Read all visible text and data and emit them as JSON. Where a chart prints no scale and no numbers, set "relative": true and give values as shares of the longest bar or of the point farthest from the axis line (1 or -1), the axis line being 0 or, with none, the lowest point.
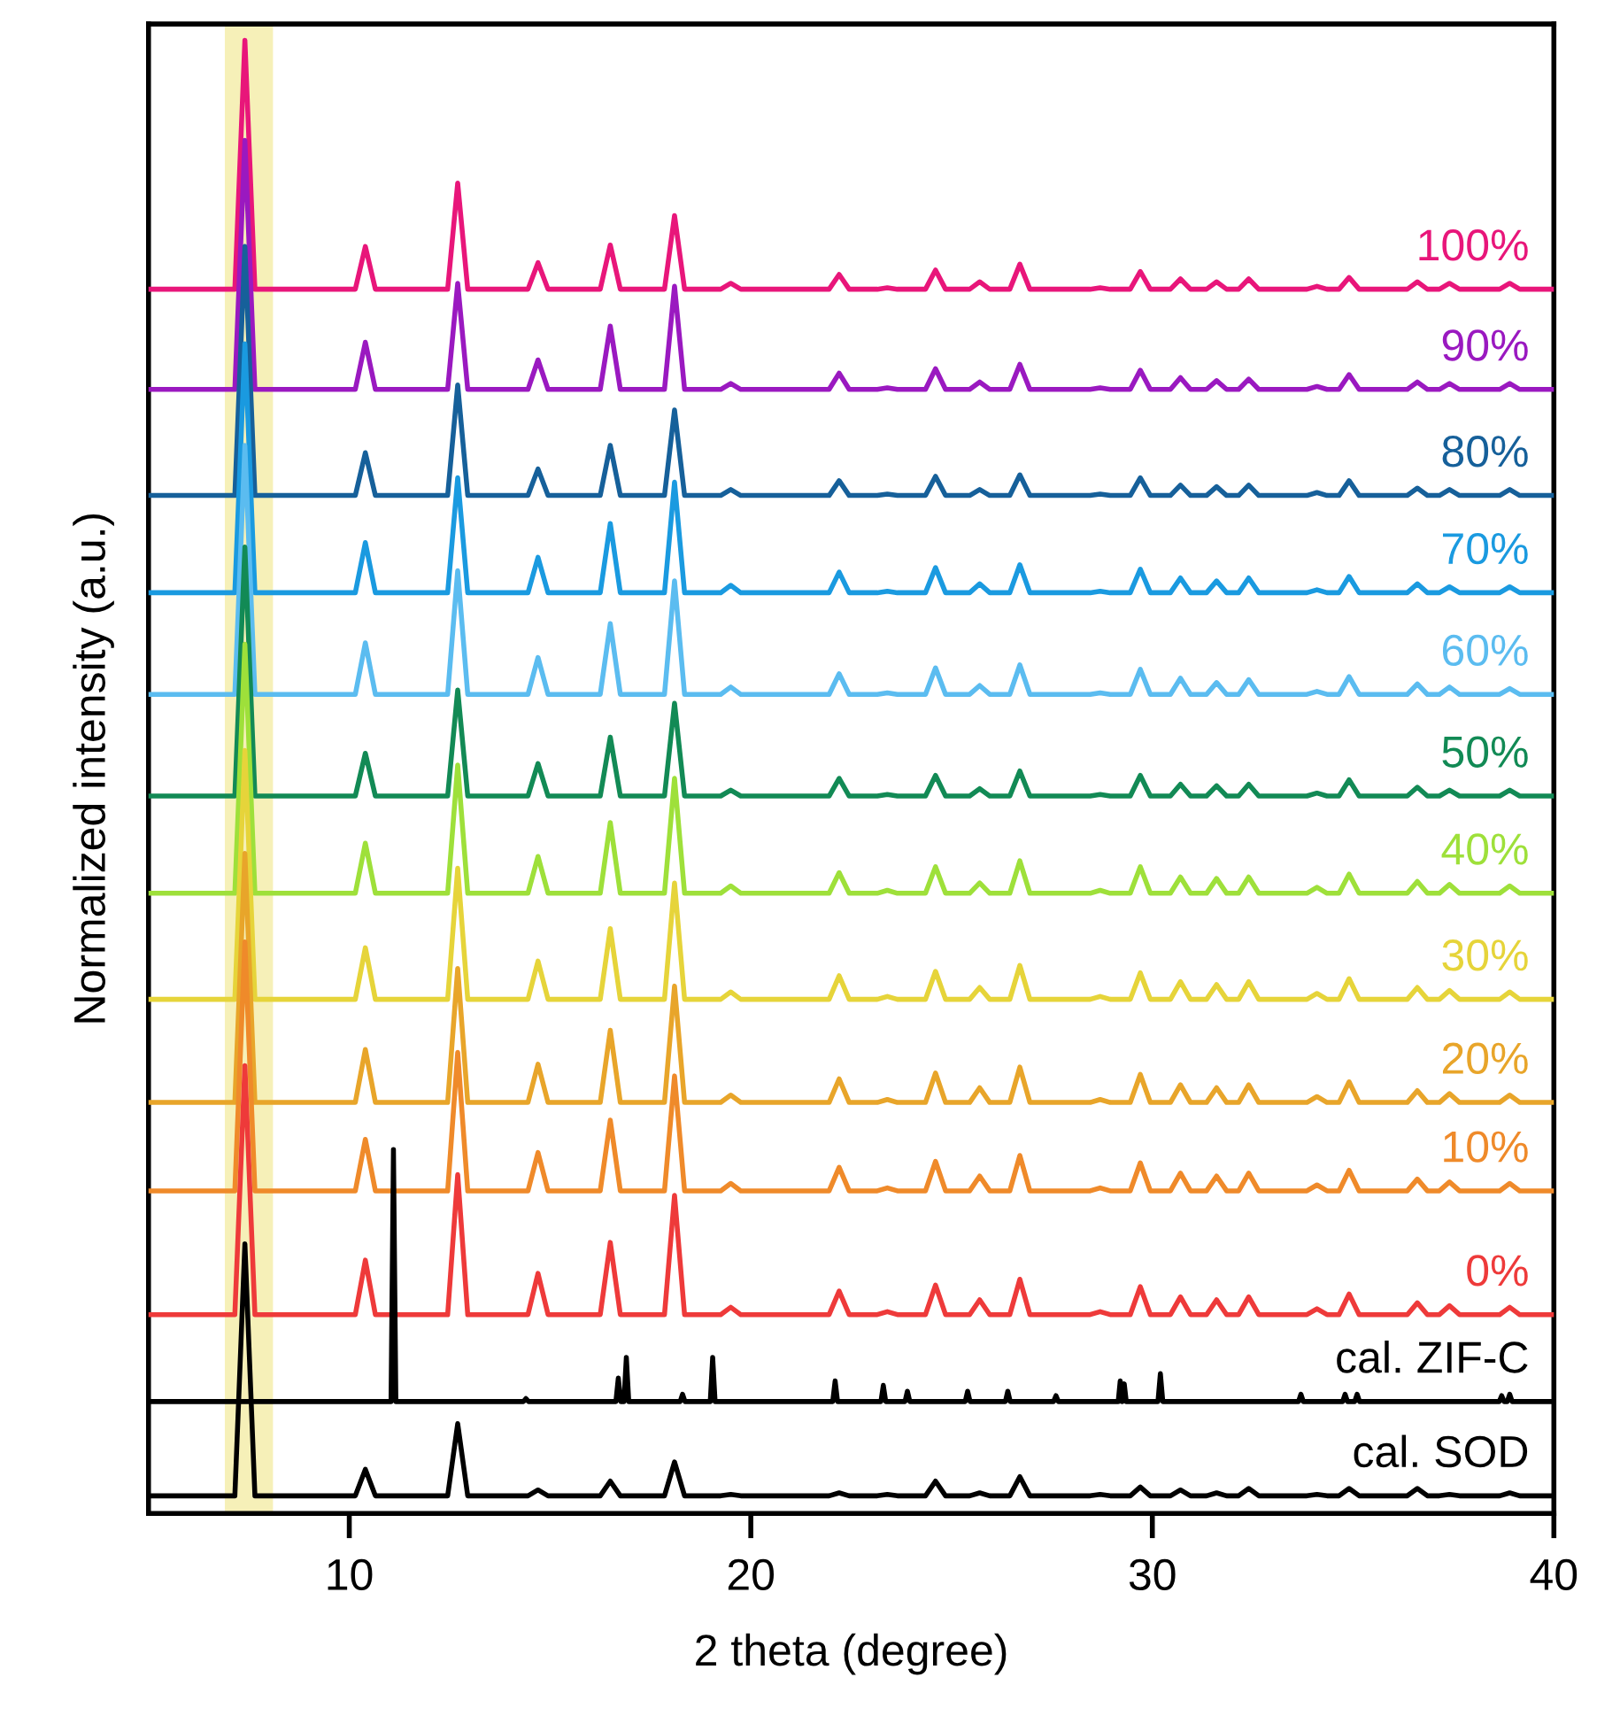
{
  "chart_data": {
    "type": "line",
    "relative": true,
    "xlabel": "2 theta (degree)",
    "ylabel": "Normalized intensity (a.u.)",
    "xlim": [
      5,
      40
    ],
    "xticks": [
      10,
      20,
      30,
      40
    ],
    "tick_labels": "x",
    "bands": [
      {
        "axis": "x",
        "from": 6.9,
        "to": 8.1,
        "color": "#f6f0b8"
      }
    ],
    "x": [
      5,
      7.15,
      7.4,
      7.65,
      10.15,
      10.4,
      10.65,
      12.45,
      12.7,
      12.95,
      14.45,
      14.7,
      14.95,
      16.25,
      16.5,
      16.75,
      17.85,
      18.1,
      18.35,
      19.25,
      19.5,
      19.75,
      21.95,
      22.2,
      22.45,
      23.15,
      23.4,
      23.65,
      24.35,
      24.6,
      24.85,
      25.45,
      25.7,
      25.95,
      26.45,
      26.7,
      26.95,
      28.45,
      28.7,
      28.95,
      29.45,
      29.7,
      29.95,
      30.45,
      30.7,
      30.95,
      31.35,
      31.6,
      31.85,
      32.15,
      32.4,
      32.65,
      33.85,
      34.1,
      34.35,
      34.65,
      34.9,
      35.15,
      36.35,
      36.6,
      36.85,
      37.15,
      37.4,
      37.65,
      38.65,
      38.9,
      39.15,
      40
    ],
    "series": [
      {
        "name": "100%",
        "color": "#e8167a",
        "values": [
          0.831,
          0.831,
          1.0,
          0.831,
          0.831,
          0.86,
          0.831,
          0.831,
          0.903,
          0.831,
          0.831,
          0.849,
          0.831,
          0.831,
          0.861,
          0.831,
          0.831,
          0.881,
          0.831,
          0.831,
          0.835,
          0.831,
          0.831,
          0.841,
          0.831,
          0.831,
          0.832,
          0.831,
          0.831,
          0.844,
          0.831,
          0.831,
          0.836,
          0.831,
          0.831,
          0.848,
          0.831,
          0.831,
          0.832,
          0.831,
          0.831,
          0.843,
          0.831,
          0.831,
          0.838,
          0.831,
          0.831,
          0.836,
          0.831,
          0.831,
          0.838,
          0.831,
          0.831,
          0.833,
          0.831,
          0.831,
          0.839,
          0.831,
          0.831,
          0.836,
          0.831,
          0.831,
          0.835,
          0.831,
          0.831,
          0.835,
          0.831,
          0.831
        ]
      },
      {
        "name": "90%",
        "color": "#9a19c0",
        "values": [
          0.763,
          0.763,
          0.932,
          0.763,
          0.763,
          0.795,
          0.763,
          0.763,
          0.835,
          0.763,
          0.763,
          0.783,
          0.763,
          0.763,
          0.806,
          0.763,
          0.763,
          0.833,
          0.763,
          0.763,
          0.767,
          0.763,
          0.763,
          0.774,
          0.763,
          0.763,
          0.764,
          0.763,
          0.763,
          0.777,
          0.763,
          0.763,
          0.768,
          0.763,
          0.763,
          0.78,
          0.763,
          0.763,
          0.764,
          0.763,
          0.763,
          0.776,
          0.763,
          0.763,
          0.771,
          0.763,
          0.763,
          0.769,
          0.763,
          0.763,
          0.77,
          0.763,
          0.763,
          0.765,
          0.763,
          0.763,
          0.773,
          0.763,
          0.763,
          0.768,
          0.763,
          0.763,
          0.767,
          0.763,
          0.763,
          0.767,
          0.763,
          0.763
        ]
      },
      {
        "name": "80%",
        "color": "#16609a",
        "values": [
          0.691,
          0.691,
          0.86,
          0.691,
          0.691,
          0.72,
          0.691,
          0.691,
          0.766,
          0.691,
          0.691,
          0.709,
          0.691,
          0.691,
          0.725,
          0.691,
          0.691,
          0.749,
          0.691,
          0.691,
          0.695,
          0.691,
          0.691,
          0.701,
          0.691,
          0.691,
          0.692,
          0.691,
          0.691,
          0.704,
          0.691,
          0.691,
          0.695,
          0.691,
          0.691,
          0.705,
          0.691,
          0.691,
          0.692,
          0.691,
          0.691,
          0.703,
          0.691,
          0.691,
          0.698,
          0.691,
          0.691,
          0.697,
          0.691,
          0.691,
          0.698,
          0.691,
          0.691,
          0.693,
          0.691,
          0.691,
          0.701,
          0.691,
          0.691,
          0.696,
          0.691,
          0.691,
          0.695,
          0.691,
          0.691,
          0.695,
          0.691,
          0.691
        ]
      },
      {
        "name": "70%",
        "color": "#1a9ae0",
        "values": [
          0.625,
          0.625,
          0.794,
          0.625,
          0.625,
          0.659,
          0.625,
          0.625,
          0.703,
          0.625,
          0.625,
          0.649,
          0.625,
          0.625,
          0.672,
          0.625,
          0.625,
          0.7,
          0.625,
          0.625,
          0.63,
          0.625,
          0.625,
          0.639,
          0.625,
          0.625,
          0.626,
          0.625,
          0.625,
          0.642,
          0.625,
          0.625,
          0.631,
          0.625,
          0.625,
          0.644,
          0.625,
          0.625,
          0.626,
          0.625,
          0.625,
          0.641,
          0.625,
          0.625,
          0.635,
          0.625,
          0.625,
          0.633,
          0.625,
          0.625,
          0.635,
          0.625,
          0.625,
          0.627,
          0.625,
          0.625,
          0.636,
          0.625,
          0.625,
          0.631,
          0.625,
          0.625,
          0.629,
          0.625,
          0.625,
          0.629,
          0.625,
          0.625
        ]
      },
      {
        "name": "60%",
        "color": "#5bbcf0",
        "values": [
          0.556,
          0.556,
          0.725,
          0.556,
          0.556,
          0.591,
          0.556,
          0.556,
          0.64,
          0.556,
          0.556,
          0.581,
          0.556,
          0.556,
          0.604,
          0.556,
          0.556,
          0.633,
          0.556,
          0.556,
          0.561,
          0.556,
          0.556,
          0.57,
          0.556,
          0.556,
          0.557,
          0.556,
          0.556,
          0.574,
          0.556,
          0.556,
          0.562,
          0.556,
          0.556,
          0.576,
          0.556,
          0.556,
          0.557,
          0.556,
          0.556,
          0.573,
          0.556,
          0.556,
          0.567,
          0.556,
          0.556,
          0.564,
          0.556,
          0.556,
          0.566,
          0.556,
          0.556,
          0.558,
          0.556,
          0.556,
          0.568,
          0.556,
          0.556,
          0.563,
          0.556,
          0.556,
          0.561,
          0.556,
          0.556,
          0.56,
          0.556,
          0.556
        ]
      },
      {
        "name": "50%",
        "color": "#128a55",
        "values": [
          0.487,
          0.487,
          0.656,
          0.487,
          0.487,
          0.516,
          0.487,
          0.487,
          0.559,
          0.487,
          0.487,
          0.509,
          0.487,
          0.487,
          0.527,
          0.487,
          0.487,
          0.55,
          0.487,
          0.487,
          0.491,
          0.487,
          0.487,
          0.499,
          0.487,
          0.487,
          0.488,
          0.487,
          0.487,
          0.501,
          0.487,
          0.487,
          0.492,
          0.487,
          0.487,
          0.504,
          0.487,
          0.487,
          0.488,
          0.487,
          0.487,
          0.501,
          0.487,
          0.487,
          0.495,
          0.487,
          0.487,
          0.494,
          0.487,
          0.487,
          0.495,
          0.487,
          0.487,
          0.489,
          0.487,
          0.487,
          0.498,
          0.487,
          0.487,
          0.493,
          0.487,
          0.487,
          0.491,
          0.487,
          0.487,
          0.491,
          0.487,
          0.487
        ]
      },
      {
        "name": "40%",
        "color": "#9ee03a",
        "values": [
          0.421,
          0.421,
          0.59,
          0.421,
          0.421,
          0.455,
          0.421,
          0.421,
          0.508,
          0.421,
          0.421,
          0.446,
          0.421,
          0.421,
          0.469,
          0.421,
          0.421,
          0.499,
          0.421,
          0.421,
          0.426,
          0.421,
          0.421,
          0.435,
          0.421,
          0.421,
          0.423,
          0.421,
          0.421,
          0.439,
          0.421,
          0.421,
          0.428,
          0.421,
          0.421,
          0.443,
          0.421,
          0.421,
          0.423,
          0.421,
          0.421,
          0.439,
          0.421,
          0.421,
          0.432,
          0.421,
          0.421,
          0.431,
          0.421,
          0.421,
          0.432,
          0.421,
          0.421,
          0.425,
          0.421,
          0.421,
          0.434,
          0.421,
          0.421,
          0.429,
          0.421,
          0.421,
          0.427,
          0.421,
          0.421,
          0.426,
          0.421,
          0.421
        ]
      },
      {
        "name": "30%",
        "color": "#e6d43a",
        "values": [
          0.349,
          0.349,
          0.518,
          0.349,
          0.349,
          0.384,
          0.349,
          0.349,
          0.438,
          0.349,
          0.349,
          0.375,
          0.349,
          0.349,
          0.397,
          0.349,
          0.349,
          0.428,
          0.349,
          0.349,
          0.354,
          0.349,
          0.349,
          0.365,
          0.349,
          0.349,
          0.351,
          0.349,
          0.349,
          0.368,
          0.349,
          0.349,
          0.357,
          0.349,
          0.349,
          0.372,
          0.349,
          0.349,
          0.351,
          0.349,
          0.349,
          0.367,
          0.349,
          0.349,
          0.361,
          0.349,
          0.349,
          0.359,
          0.349,
          0.349,
          0.361,
          0.349,
          0.349,
          0.353,
          0.349,
          0.349,
          0.363,
          0.349,
          0.349,
          0.357,
          0.349,
          0.349,
          0.355,
          0.349,
          0.349,
          0.354,
          0.349,
          0.349
        ]
      },
      {
        "name": "20%",
        "color": "#e8a52a",
        "values": [
          0.279,
          0.279,
          0.448,
          0.279,
          0.279,
          0.315,
          0.279,
          0.279,
          0.37,
          0.279,
          0.279,
          0.305,
          0.279,
          0.279,
          0.328,
          0.279,
          0.279,
          0.358,
          0.279,
          0.279,
          0.284,
          0.279,
          0.279,
          0.295,
          0.279,
          0.279,
          0.281,
          0.279,
          0.279,
          0.299,
          0.279,
          0.279,
          0.289,
          0.279,
          0.279,
          0.303,
          0.279,
          0.279,
          0.281,
          0.279,
          0.279,
          0.298,
          0.279,
          0.279,
          0.291,
          0.279,
          0.279,
          0.289,
          0.279,
          0.279,
          0.291,
          0.279,
          0.279,
          0.283,
          0.279,
          0.279,
          0.293,
          0.279,
          0.279,
          0.287,
          0.279,
          0.279,
          0.285,
          0.279,
          0.279,
          0.284,
          0.279,
          0.279
        ]
      },
      {
        "name": "10%",
        "color": "#ef8a2a",
        "values": [
          0.219,
          0.219,
          0.388,
          0.219,
          0.219,
          0.254,
          0.219,
          0.219,
          0.313,
          0.219,
          0.219,
          0.245,
          0.219,
          0.219,
          0.267,
          0.219,
          0.219,
          0.297,
          0.219,
          0.219,
          0.224,
          0.219,
          0.219,
          0.235,
          0.219,
          0.219,
          0.221,
          0.219,
          0.219,
          0.239,
          0.219,
          0.219,
          0.229,
          0.219,
          0.219,
          0.243,
          0.219,
          0.219,
          0.221,
          0.219,
          0.219,
          0.238,
          0.219,
          0.219,
          0.231,
          0.219,
          0.219,
          0.229,
          0.219,
          0.219,
          0.231,
          0.219,
          0.219,
          0.223,
          0.219,
          0.219,
          0.233,
          0.219,
          0.219,
          0.227,
          0.219,
          0.219,
          0.225,
          0.219,
          0.219,
          0.224,
          0.219,
          0.219
        ]
      },
      {
        "name": "0%",
        "color": "#ee3a3a",
        "values": [
          0.135,
          0.135,
          0.304,
          0.135,
          0.135,
          0.172,
          0.135,
          0.135,
          0.23,
          0.135,
          0.135,
          0.163,
          0.135,
          0.135,
          0.184,
          0.135,
          0.135,
          0.216,
          0.135,
          0.135,
          0.14,
          0.135,
          0.135,
          0.151,
          0.135,
          0.135,
          0.137,
          0.135,
          0.135,
          0.155,
          0.135,
          0.135,
          0.145,
          0.135,
          0.135,
          0.159,
          0.135,
          0.135,
          0.137,
          0.135,
          0.135,
          0.154,
          0.135,
          0.135,
          0.147,
          0.135,
          0.135,
          0.145,
          0.135,
          0.135,
          0.147,
          0.135,
          0.135,
          0.139,
          0.135,
          0.135,
          0.149,
          0.135,
          0.135,
          0.143,
          0.135,
          0.135,
          0.141,
          0.135,
          0.135,
          0.14,
          0.135,
          0.135
        ]
      },
      {
        "name": "cal. ZIF-C",
        "color": "#000000",
        "x": [
          5,
          11.04,
          11.1,
          11.16,
          14.34,
          14.4,
          14.46,
          16.64,
          16.7,
          16.76,
          16.84,
          16.9,
          16.96,
          18.24,
          18.3,
          18.36,
          18.99,
          19.05,
          19.11,
          22.04,
          22.1,
          22.16,
          23.24,
          23.3,
          23.36,
          23.84,
          23.9,
          23.96,
          25.34,
          25.4,
          25.46,
          26.34,
          26.4,
          26.46,
          27.54,
          27.6,
          27.66,
          29.15,
          29.2,
          29.25,
          29.25,
          29.3,
          29.35,
          30.14,
          30.2,
          30.26,
          33.64,
          33.7,
          33.76,
          34.74,
          34.8,
          34.86,
          35.04,
          35.1,
          35.16,
          38.64,
          38.7,
          38.76,
          38.84,
          38.9,
          38.96,
          40
        ],
        "values": [
          0.076,
          0.076,
          0.247,
          0.076,
          0.076,
          0.078,
          0.076,
          0.076,
          0.092,
          0.076,
          0.076,
          0.106,
          0.076,
          0.076,
          0.081,
          0.076,
          0.076,
          0.106,
          0.076,
          0.076,
          0.09,
          0.076,
          0.076,
          0.087,
          0.076,
          0.076,
          0.083,
          0.076,
          0.076,
          0.083,
          0.076,
          0.076,
          0.083,
          0.076,
          0.076,
          0.08,
          0.076,
          0.076,
          0.09,
          0.076,
          0.076,
          0.088,
          0.076,
          0.076,
          0.095,
          0.076,
          0.076,
          0.081,
          0.076,
          0.076,
          0.081,
          0.076,
          0.076,
          0.081,
          0.076,
          0.076,
          0.08,
          0.076,
          0.076,
          0.081,
          0.076,
          0.076
        ]
      },
      {
        "name": "cal. SOD",
        "color": "#000000",
        "values": [
          0.012,
          0.012,
          0.183,
          0.012,
          0.012,
          0.03,
          0.012,
          0.012,
          0.061,
          0.012,
          0.012,
          0.016,
          0.012,
          0.012,
          0.022,
          0.012,
          0.012,
          0.035,
          0.012,
          0.012,
          0.013,
          0.012,
          0.012,
          0.014,
          0.012,
          0.012,
          0.013,
          0.012,
          0.012,
          0.022,
          0.012,
          0.012,
          0.014,
          0.012,
          0.012,
          0.025,
          0.012,
          0.012,
          0.013,
          0.012,
          0.012,
          0.018,
          0.012,
          0.012,
          0.016,
          0.012,
          0.012,
          0.014,
          0.012,
          0.012,
          0.017,
          0.012,
          0.012,
          0.013,
          0.012,
          0.012,
          0.017,
          0.012,
          0.012,
          0.017,
          0.012,
          0.012,
          0.013,
          0.012,
          0.012,
          0.014,
          0.012,
          0.012
        ]
      }
    ]
  }
}
